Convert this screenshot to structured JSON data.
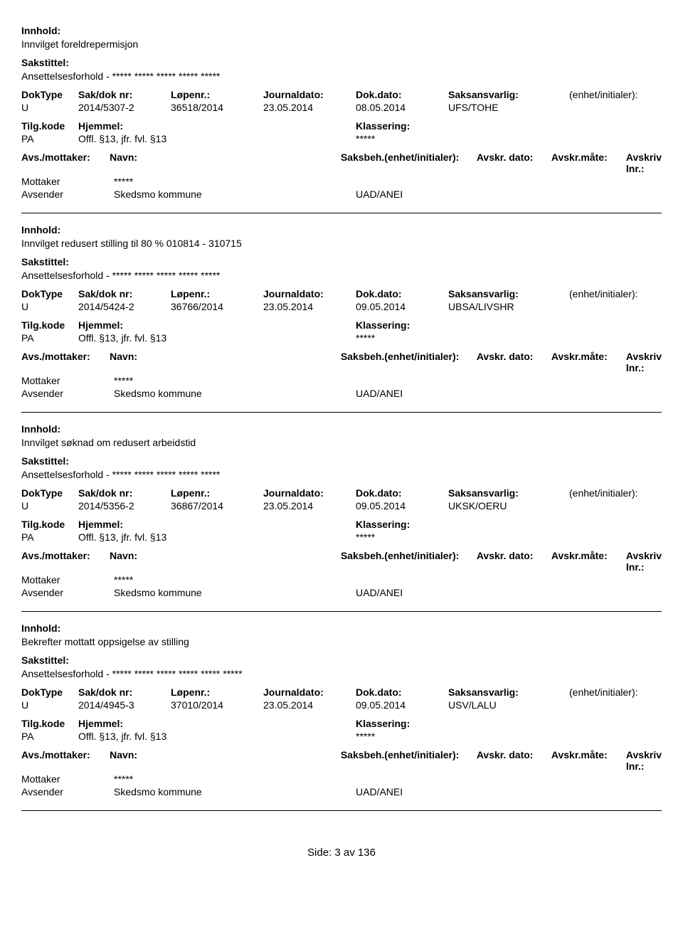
{
  "labels": {
    "innhold": "Innhold:",
    "sakstittel": "Sakstittel:",
    "doktype": "DokType",
    "sakdok": "Sak/dok nr:",
    "lopenr": "Løpenr.:",
    "journaldato": "Journaldato:",
    "dokdato": "Dok.dato:",
    "saksansvarlig": "Saksansvarlig:",
    "enhetinit": "(enhet/initialer):",
    "tilgkode": "Tilg.kode",
    "hjemmel": "Hjemmel:",
    "klassering": "Klassering:",
    "avsmottaker": "Avs./mottaker:",
    "navn": "Navn:",
    "saksbeh": "Saksbeh.(enhet/initialer):",
    "avskrdato": "Avskr. dato:",
    "avskrmate": "Avskr.måte:",
    "avskrlnr": "Avskriv lnr.:"
  },
  "records": [
    {
      "innhold": "Innvilget foreldrepermisjon",
      "sakstittel": "Ansettelsesforhold - ***** ***** ***** ***** *****",
      "doktype": "U",
      "sakdok": "2014/5307-2",
      "lopenr": "36518/2014",
      "journaldato": "23.05.2014",
      "dokdato": "08.05.2014",
      "saksansvarlig": "UFS/TOHE",
      "tilgkode": "PA",
      "hjemmel": "Offl. §13, jfr. fvl. §13",
      "klassering": "*****",
      "mottaker_label": "Mottaker",
      "mottaker_navn": "*****",
      "avsender_label": "Avsender",
      "avsender_navn": "Skedsmo kommune",
      "uad": "UAD/ANEI"
    },
    {
      "innhold": "Innvilget redusert stilling til 80 % 010814 - 310715",
      "sakstittel": "Ansettelsesforhold - ***** ***** ***** ***** *****",
      "doktype": "U",
      "sakdok": "2014/5424-2",
      "lopenr": "36766/2014",
      "journaldato": "23.05.2014",
      "dokdato": "09.05.2014",
      "saksansvarlig": "UBSA/LIVSHR",
      "tilgkode": "PA",
      "hjemmel": "Offl. §13, jfr. fvl. §13",
      "klassering": "*****",
      "mottaker_label": "Mottaker",
      "mottaker_navn": "*****",
      "avsender_label": "Avsender",
      "avsender_navn": "Skedsmo kommune",
      "uad": "UAD/ANEI"
    },
    {
      "innhold": "Innvilget søknad om redusert arbeidstid",
      "sakstittel": "Ansettelsesforhold - ***** ***** ***** ***** *****",
      "doktype": "U",
      "sakdok": "2014/5356-2",
      "lopenr": "36867/2014",
      "journaldato": "23.05.2014",
      "dokdato": "09.05.2014",
      "saksansvarlig": "UKSK/OERU",
      "tilgkode": "PA",
      "hjemmel": "Offl. §13, jfr. fvl. §13",
      "klassering": "*****",
      "mottaker_label": "Mottaker",
      "mottaker_navn": "*****",
      "avsender_label": "Avsender",
      "avsender_navn": "Skedsmo kommune",
      "uad": "UAD/ANEI"
    },
    {
      "innhold": "Bekrefter mottatt oppsigelse av stilling",
      "sakstittel": "Ansettelsesforhold - ***** ***** ***** ***** ***** *****",
      "doktype": "U",
      "sakdok": "2014/4945-3",
      "lopenr": "37010/2014",
      "journaldato": "23.05.2014",
      "dokdato": "09.05.2014",
      "saksansvarlig": "USV/LALU",
      "tilgkode": "PA",
      "hjemmel": "Offl. §13, jfr. fvl. §13",
      "klassering": "*****",
      "mottaker_label": "Mottaker",
      "mottaker_navn": "*****",
      "avsender_label": "Avsender",
      "avsender_navn": "Skedsmo kommune",
      "uad": "UAD/ANEI"
    }
  ],
  "footer": "Side: 3 av 136"
}
